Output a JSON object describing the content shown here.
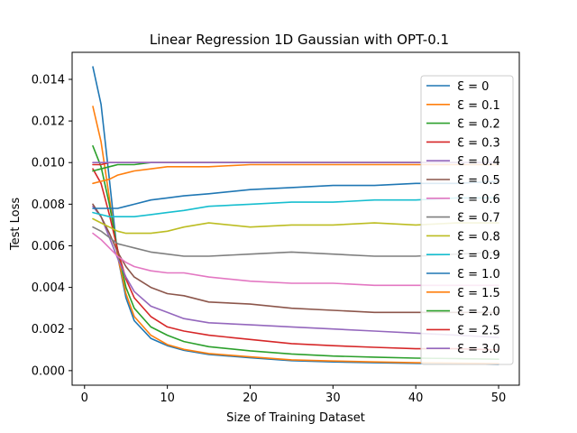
{
  "chart_data": {
    "type": "line",
    "title": "Linear Regression 1D Gaussian with OPT-0.1",
    "xlabel": "Size of Training Dataset",
    "ylabel": "Test Loss",
    "xlim": [
      -1.5,
      52.5
    ],
    "ylim": [
      -0.0007,
      0.0153
    ],
    "xticks": [
      0,
      10,
      20,
      30,
      40,
      50
    ],
    "xtick_labels": [
      "0",
      "10",
      "20",
      "30",
      "40",
      "50"
    ],
    "yticks": [
      0.0,
      0.002,
      0.004,
      0.006,
      0.008,
      0.01,
      0.012,
      0.014
    ],
    "ytick_labels": [
      "0.000",
      "0.002",
      "0.004",
      "0.006",
      "0.008",
      "0.010",
      "0.012",
      "0.014"
    ],
    "legend_position": "top-right",
    "x": [
      1,
      2,
      3,
      4,
      5,
      6,
      8,
      10,
      12,
      15,
      20,
      25,
      30,
      35,
      40,
      45,
      50
    ],
    "series": [
      {
        "name": "Ɛ = 0",
        "color": "#1f77b4",
        "values": [
          0.0146,
          0.0128,
          0.0092,
          0.0055,
          0.0035,
          0.0024,
          0.00155,
          0.0012,
          0.00098,
          0.00078,
          0.00062,
          0.00048,
          0.00042,
          0.00038,
          0.00035,
          0.00033,
          0.0003
        ]
      },
      {
        "name": "Ɛ = 0.1",
        "color": "#ff7f0e",
        "values": [
          0.0127,
          0.011,
          0.0083,
          0.0055,
          0.0037,
          0.0026,
          0.0017,
          0.00125,
          0.00102,
          0.00082,
          0.00066,
          0.00052,
          0.00046,
          0.00042,
          0.00038,
          0.00036,
          0.00033
        ]
      },
      {
        "name": "Ɛ = 0.2",
        "color": "#2ca02c",
        "values": [
          0.0108,
          0.0098,
          0.008,
          0.0058,
          0.004,
          0.003,
          0.0021,
          0.0017,
          0.0014,
          0.00115,
          0.00095,
          0.0008,
          0.0007,
          0.00065,
          0.0006,
          0.00058,
          0.00055
        ]
      },
      {
        "name": "Ɛ = 0.3",
        "color": "#d62728",
        "values": [
          0.0097,
          0.009,
          0.0075,
          0.0058,
          0.0044,
          0.0035,
          0.0026,
          0.0021,
          0.0019,
          0.0017,
          0.0015,
          0.0013,
          0.0012,
          0.00112,
          0.00105,
          0.00105,
          0.001
        ]
      },
      {
        "name": "Ɛ = 0.4",
        "color": "#9467bd",
        "values": [
          0.0079,
          0.0074,
          0.0064,
          0.0054,
          0.0045,
          0.0038,
          0.0031,
          0.0028,
          0.0025,
          0.0023,
          0.0022,
          0.0021,
          0.002,
          0.0019,
          0.0018,
          0.0017,
          0.0016
        ]
      },
      {
        "name": "Ɛ = 0.5",
        "color": "#8c564b",
        "values": [
          0.008,
          0.0074,
          0.0066,
          0.0057,
          0.005,
          0.0045,
          0.004,
          0.0037,
          0.0036,
          0.0033,
          0.0032,
          0.003,
          0.0029,
          0.0028,
          0.0028,
          0.0028,
          0.0028
        ]
      },
      {
        "name": "Ɛ = 0.6",
        "color": "#e377c2",
        "values": [
          0.0066,
          0.0063,
          0.0059,
          0.0055,
          0.0052,
          0.005,
          0.0048,
          0.0047,
          0.0047,
          0.0045,
          0.0043,
          0.0042,
          0.0042,
          0.0041,
          0.0041,
          0.0041,
          0.0041
        ]
      },
      {
        "name": "Ɛ = 0.7",
        "color": "#7f7f7f",
        "values": [
          0.0069,
          0.0067,
          0.0064,
          0.0061,
          0.006,
          0.0059,
          0.0057,
          0.0056,
          0.0055,
          0.0055,
          0.0056,
          0.0057,
          0.0056,
          0.0055,
          0.0055,
          0.0056,
          0.0057
        ]
      },
      {
        "name": "Ɛ = 0.8",
        "color": "#bcbd22",
        "values": [
          0.0073,
          0.0071,
          0.0069,
          0.0067,
          0.0066,
          0.0066,
          0.0066,
          0.0067,
          0.0069,
          0.0071,
          0.0069,
          0.007,
          0.007,
          0.0071,
          0.007,
          0.0071,
          0.0071
        ]
      },
      {
        "name": "Ɛ = 0.9",
        "color": "#17becf",
        "values": [
          0.0076,
          0.0075,
          0.0074,
          0.0074,
          0.0074,
          0.0074,
          0.0075,
          0.0076,
          0.0077,
          0.0079,
          0.008,
          0.0081,
          0.0081,
          0.0082,
          0.0082,
          0.0083,
          0.0083
        ]
      },
      {
        "name": "Ɛ = 1.0",
        "color": "#1f77b4",
        "values": [
          0.0078,
          0.0078,
          0.0078,
          0.0078,
          0.0079,
          0.008,
          0.0082,
          0.0083,
          0.0084,
          0.0085,
          0.0087,
          0.0088,
          0.0089,
          0.0089,
          0.009,
          0.009,
          0.0091
        ]
      },
      {
        "name": "Ɛ = 1.5",
        "color": "#ff7f0e",
        "values": [
          0.009,
          0.0091,
          0.0092,
          0.0094,
          0.0095,
          0.0096,
          0.0097,
          0.0098,
          0.0098,
          0.0098,
          0.0099,
          0.0099,
          0.0099,
          0.0099,
          0.0099,
          0.0099,
          0.0099
        ]
      },
      {
        "name": "Ɛ = 2.0",
        "color": "#2ca02c",
        "values": [
          0.0096,
          0.0097,
          0.0098,
          0.0099,
          0.0099,
          0.0099,
          0.01,
          0.01,
          0.01,
          0.01,
          0.01,
          0.01,
          0.01,
          0.01,
          0.01,
          0.01,
          0.01
        ]
      },
      {
        "name": "Ɛ = 2.5",
        "color": "#d62728",
        "values": [
          0.0099,
          0.0099,
          0.01,
          0.01,
          0.01,
          0.01,
          0.01,
          0.01,
          0.01,
          0.01,
          0.01,
          0.01,
          0.01,
          0.01,
          0.01,
          0.01,
          0.01
        ]
      },
      {
        "name": "Ɛ = 3.0",
        "color": "#9467bd",
        "values": [
          0.01,
          0.01,
          0.01,
          0.01,
          0.01,
          0.01,
          0.01,
          0.01,
          0.01,
          0.01,
          0.01,
          0.01,
          0.01,
          0.01,
          0.01,
          0.01,
          0.01
        ]
      }
    ]
  }
}
